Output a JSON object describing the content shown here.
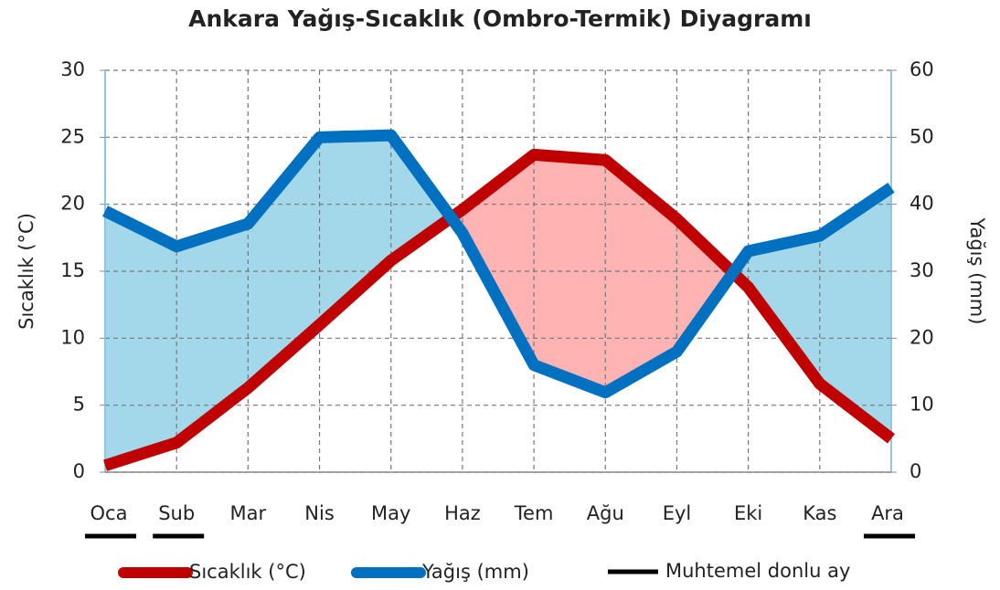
{
  "chart_data": {
    "type": "ombrothermic",
    "title": "Ankara Yağış-Sıcaklık (Ombro-Termik) Diyagramı",
    "ylabel": "Sıcaklık (°C)",
    "y2label": "Yağış (mm)",
    "categories": [
      "Oca",
      "Sub",
      "Mar",
      "Nis",
      "May",
      "Haz",
      "Tem",
      "Ağu",
      "Eyl",
      "Eki",
      "Kas",
      "Ara"
    ],
    "series": [
      {
        "name": "Sıcaklık (°C)",
        "color": "#c00000",
        "axis": "y",
        "values": [
          0.5,
          2.2,
          6.3,
          11.0,
          15.8,
          19.6,
          23.7,
          23.3,
          18.9,
          13.8,
          6.6,
          2.5
        ]
      },
      {
        "name": "Yağış (mm)",
        "color": "#0070c0",
        "axis": "y2",
        "values": [
          39.0,
          33.7,
          37.1,
          50.0,
          50.3,
          35.7,
          16.0,
          11.9,
          18.0,
          33.0,
          35.3,
          42.5
        ]
      }
    ],
    "wet_fill_color": "#a3d8ea",
    "dry_fill_color": "#ffb3b3",
    "frost": [
      true,
      true,
      false,
      false,
      false,
      false,
      false,
      false,
      false,
      false,
      false,
      true
    ],
    "frost_label": "Muhtemel donlu ay",
    "frost_color": "#000000",
    "ylim": [
      0,
      30
    ],
    "yticks": [
      0,
      5,
      10,
      15,
      20,
      25,
      30
    ],
    "y2lim": [
      0,
      60
    ],
    "y2ticks": [
      0,
      10,
      20,
      30,
      40,
      50,
      60
    ],
    "grid": true
  }
}
